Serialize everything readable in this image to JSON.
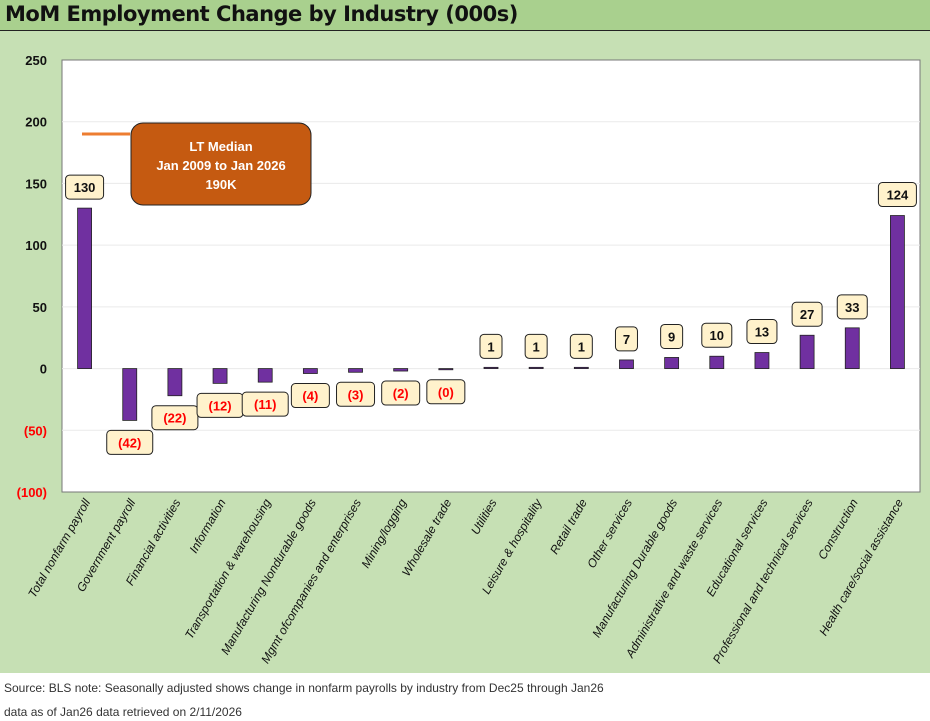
{
  "chart_data": {
    "type": "bar",
    "title": "MoM Employment Change by Industry (000s)",
    "categories": [
      "Total nonfarm payroll",
      "Government payroll",
      "Financial activities",
      "Information",
      "Transportation & warehousing",
      "Manufacturing Nondurable goods",
      "Mgmt ofcompanies and enterprises",
      "Mining/logging",
      "Wholesale trade",
      "Utilities",
      "Leisure & hospitality",
      "Retail trade",
      "Other services",
      "Manufacturing Durable goods",
      "Administrative and waste services",
      "Educational services",
      "Professional and technical services",
      "Construction",
      "Health care/social assistance"
    ],
    "values": [
      130,
      -42,
      -22,
      -12,
      -11,
      -4,
      -3,
      -2,
      -0.4,
      1,
      1,
      1,
      7,
      9,
      10,
      13,
      27,
      33,
      124
    ],
    "data_labels": [
      "130",
      "(42)",
      "(22)",
      "(12)",
      "(11)",
      "(4)",
      "(3)",
      "(2)",
      "(0)",
      "1",
      "1",
      "1",
      "7",
      "9",
      "10",
      "13",
      "27",
      "33",
      "124"
    ],
    "ylim": [
      -100,
      250
    ],
    "yticks": [
      250,
      200,
      150,
      100,
      50,
      0,
      -50,
      -100
    ],
    "ytick_labels": [
      "250",
      "200",
      "150",
      "100",
      "50",
      "0",
      "(50)",
      "(100)"
    ],
    "grid": true,
    "reference_line": {
      "value": 190,
      "label_lines": [
        "LT Median",
        "Jan 2009 to Jan 2026",
        "190K"
      ]
    },
    "colors": {
      "bar": "#7030a0",
      "label_bg": "#fff2cc",
      "negative_text": "#ff0000",
      "median_line": "#ed7d31",
      "callout": "#c55a11"
    }
  },
  "footer": {
    "line1": "Source: BLS     note: Seasonally adjusted     shows change in nonfarm payrolls by industry from Dec25 through Jan26",
    "line2": "data as of Jan26     data retrieved on 2/11/2026"
  }
}
